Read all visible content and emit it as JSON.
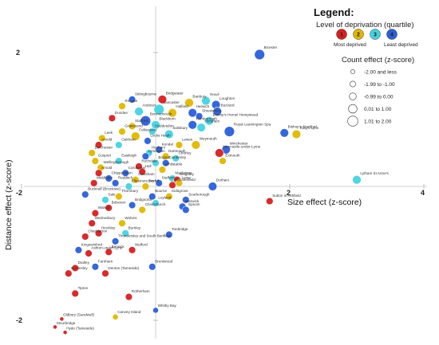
{
  "chart_data": {
    "type": "scatter",
    "xlabel": "Size effect (z-score)",
    "ylabel": "Distance effect (z-score)",
    "xlim": [
      -2.0,
      4.0
    ],
    "ylim": [
      -2.1,
      2.35
    ],
    "x_ticks": [
      "-2",
      "2",
      "4"
    ],
    "y_ticks": [
      "2",
      "-2"
    ],
    "legend": {
      "title": "Legend:",
      "deprivation_title": "Level of deprivation (quartile)",
      "deprivation_items": [
        {
          "number": "1",
          "color": "#d62020"
        },
        {
          "number": "2",
          "color": "#e0b800"
        },
        {
          "number": "3",
          "color": "#45d3e0"
        },
        {
          "number": "4",
          "color": "#2b5fd8"
        }
      ],
      "most_label": "Most deprived",
      "least_label": "Least deprived",
      "count_title": "Count effect (z-score)",
      "count_items": [
        "-2.00 and less",
        "-1.99 to -1.00",
        "-0.99 to 0.00",
        "0.01 to 1.00",
        "1.01 to 2.00"
      ]
    },
    "series": [
      {
        "label": "Reigate",
        "x": -0.5,
        "y": 1.2,
        "q": 2,
        "c": 3
      },
      {
        "label": "Bridgwater",
        "x": 0.1,
        "y": 1.3,
        "q": 1,
        "c": 4
      },
      {
        "label": "Sittingbourne",
        "x": -0.35,
        "y": 1.3,
        "q": 4,
        "c": 3
      },
      {
        "label": "Banbury",
        "x": 0.5,
        "y": 1.25,
        "q": 2,
        "c": 4
      },
      {
        "label": "Yeovil",
        "x": 0.75,
        "y": 1.28,
        "q": 3,
        "c": 4
      },
      {
        "label": "Loughton",
        "x": 0.9,
        "y": 1.22,
        "q": 4,
        "c": 4
      },
      {
        "label": "Buzzard",
        "x": 0.92,
        "y": 1.12,
        "q": 4,
        "c": 4
      },
      {
        "label": "Lancaster",
        "x": 0.05,
        "y": 1.15,
        "q": 3,
        "c": 5
      },
      {
        "label": "Halfield",
        "x": 0.25,
        "y": 1.1,
        "q": 2,
        "c": 4
      },
      {
        "label": "Harwich",
        "x": 0.55,
        "y": 1.1,
        "q": 4,
        "c": 4
      },
      {
        "label": "Andover",
        "x": -0.25,
        "y": 1.12,
        "q": 3,
        "c": 4
      },
      {
        "label": "Shrewsbury",
        "x": 0.65,
        "y": 1.05,
        "q": 4,
        "c": 3
      },
      {
        "label": "Bishop's Hemel Hempstead",
        "x": 0.8,
        "y": 0.98,
        "q": 3,
        "c": 4
      },
      {
        "label": "Dundee",
        "x": -0.65,
        "y": 1.02,
        "q": 1,
        "c": 3
      },
      {
        "label": "Bonrnemouth",
        "x": -0.15,
        "y": 0.98,
        "q": 4,
        "c": 5
      },
      {
        "label": "Stafford",
        "x": -0.35,
        "y": 0.9,
        "q": 2,
        "c": 3
      },
      {
        "label": "Blackburn",
        "x": 0.0,
        "y": 0.92,
        "q": 3,
        "c": 4
      },
      {
        "label": "Farnborough",
        "x": 0.55,
        "y": 0.92,
        "q": 4,
        "c": 4
      },
      {
        "label": "Gravesend",
        "x": -0.5,
        "y": 0.82,
        "q": 2,
        "c": 3
      },
      {
        "label": "Hoddesdon",
        "x": -0.05,
        "y": 0.82,
        "q": 3,
        "c": 3
      },
      {
        "label": "Horsham",
        "x": 0.68,
        "y": 0.88,
        "q": 3,
        "c": 4
      },
      {
        "label": "Royal Leamington Spa",
        "x": 1.1,
        "y": 0.82,
        "q": 4,
        "c": 5
      },
      {
        "label": "Folkestone",
        "x": -0.3,
        "y": 0.75,
        "q": 2,
        "c": 4
      },
      {
        "label": "Salisbury",
        "x": 0.2,
        "y": 0.78,
        "q": 3,
        "c": 4
      },
      {
        "label": "Locks Heath",
        "x": -0.12,
        "y": 0.68,
        "q": 4,
        "c": 3
      },
      {
        "label": "Weymouth",
        "x": 0.6,
        "y": 0.62,
        "q": 2,
        "c": 4
      },
      {
        "label": "Leek",
        "x": -0.8,
        "y": 0.72,
        "q": 2,
        "c": 3
      },
      {
        "label": "Lewes",
        "x": 0.35,
        "y": 0.62,
        "q": 2,
        "c": 3
      },
      {
        "label": "Oakham",
        "x": -0.55,
        "y": 0.62,
        "q": 3,
        "c": 3
      },
      {
        "label": "Arnold",
        "x": -0.85,
        "y": 0.62,
        "q": 1,
        "c": 3
      },
      {
        "label": "Winchester",
        "x": 1.05,
        "y": 0.55,
        "q": 4,
        "c": 4
      },
      {
        "label": "Newcastle-under-Lyme",
        "x": 0.95,
        "y": 0.5,
        "q": 1,
        "c": 4
      },
      {
        "label": "Dorchester",
        "x": -0.95,
        "y": 0.5,
        "q": 2,
        "c": 3
      },
      {
        "label": "Gosport",
        "x": -0.9,
        "y": 0.38,
        "q": 2,
        "c": 3
      },
      {
        "label": "Eastleigh",
        "x": -0.55,
        "y": 0.38,
        "q": 3,
        "c": 3
      },
      {
        "label": "Rochdale",
        "x": -0.25,
        "y": 0.3,
        "q": 1,
        "c": 3
      },
      {
        "label": "Exmouth",
        "x": 1.0,
        "y": 0.38,
        "q": 2,
        "c": 3
      },
      {
        "label": "Wellingborough",
        "x": -0.82,
        "y": 0.28,
        "q": 2,
        "c": 3
      },
      {
        "label": "Arnold",
        "x": -0.85,
        "y": 0.2,
        "q": 1,
        "c": 3
      },
      {
        "label": "Chippenham",
        "x": -0.7,
        "y": 0.12,
        "q": 4,
        "c": 3
      },
      {
        "label": "Middleton",
        "x": -0.92,
        "y": 0.05,
        "q": 1,
        "c": 3
      },
      {
        "label": "Maidstone",
        "x": 0.25,
        "y": 0.12,
        "q": 3,
        "c": 3
      },
      {
        "label": "Macclesfield",
        "x": 0.25,
        "y": 0.02,
        "q": 1,
        "c": 3
      },
      {
        "label": "Durham",
        "x": 0.85,
        "y": 0.0,
        "q": 4,
        "c": 4
      },
      {
        "label": "Keighley",
        "x": 0.32,
        "y": 0.1,
        "q": 1,
        "c": 3
      },
      {
        "label": "Stafford",
        "x": 0.05,
        "y": 0.05,
        "q": 4,
        "c": 3
      },
      {
        "label": "Lyme",
        "x": 0.35,
        "y": 0.05,
        "q": 2,
        "c": 3
      },
      {
        "label": "Bognor",
        "x": 0.0,
        "y": 0.35,
        "q": 3,
        "c": 3
      },
      {
        "label": "Chorley",
        "x": 0.3,
        "y": 0.42,
        "q": 3,
        "c": 3
      },
      {
        "label": "Hexham",
        "x": -0.1,
        "y": 0.5,
        "q": 3,
        "c": 3
      },
      {
        "label": "Kendal",
        "x": 0.05,
        "y": 0.55,
        "q": 4,
        "c": 3
      },
      {
        "label": "Dartmouth",
        "x": 0.15,
        "y": 0.45,
        "q": 2,
        "c": 3
      },
      {
        "label": "Lymington",
        "x": -0.15,
        "y": 0.45,
        "q": 4,
        "c": 3
      },
      {
        "label": "Hull",
        "x": -0.2,
        "y": 0.22,
        "q": 1,
        "c": 3
      },
      {
        "label": "Grantham",
        "x": -0.3,
        "y": 0.1,
        "q": 2,
        "c": 3
      },
      {
        "label": "Colchester",
        "x": -0.45,
        "y": 0.2,
        "q": 4,
        "c": 3
      },
      {
        "label": "Whitstable",
        "x": 0.1,
        "y": 0.25,
        "q": 2,
        "c": 3
      },
      {
        "label": "Camberley",
        "x": 0.15,
        "y": 0.35,
        "q": 4,
        "c": 3
      },
      {
        "label": "Redditch",
        "x": -0.6,
        "y": 0.05,
        "q": 4,
        "c": 3
      },
      {
        "label": "Ellesmere Port",
        "x": -0.4,
        "y": 0.0,
        "q": 3,
        "c": 3
      },
      {
        "label": "Bexhill",
        "x": -0.15,
        "y": 0.0,
        "q": 2,
        "c": 3
      },
      {
        "label": "Bourne",
        "x": -0.05,
        "y": -0.15,
        "q": 4,
        "c": 3
      },
      {
        "label": "Bucknall (Broxtowe)",
        "x": -1.05,
        "y": -0.12,
        "q": 4,
        "c": 3
      },
      {
        "label": "Sale",
        "x": -0.75,
        "y": -0.2,
        "q": 3,
        "c": 3
      },
      {
        "label": "Thornbury",
        "x": -0.55,
        "y": -0.15,
        "q": 2,
        "c": 3
      },
      {
        "label": "Bolsover",
        "x": -0.7,
        "y": -0.32,
        "q": 1,
        "c": 3
      },
      {
        "label": "Christchurch",
        "x": -0.2,
        "y": -0.35,
        "q": 2,
        "c": 3
      },
      {
        "label": "Walsall",
        "x": -0.9,
        "y": -0.4,
        "q": 1,
        "c": 3
      },
      {
        "label": "Bridgnorth",
        "x": -0.35,
        "y": -0.28,
        "q": 4,
        "c": 3
      },
      {
        "label": "Leyland",
        "x": 0.0,
        "y": -0.25,
        "q": 3,
        "c": 3
      },
      {
        "label": "Scarborough",
        "x": 0.45,
        "y": -0.2,
        "q": 4,
        "c": 3
      },
      {
        "label": "Kidsgrove",
        "x": 0.2,
        "y": -0.15,
        "q": 2,
        "c": 3
      },
      {
        "label": "Warwick",
        "x": 0.4,
        "y": -0.3,
        "q": 4,
        "c": 3
      },
      {
        "label": "Epsom",
        "x": 0.45,
        "y": -0.35,
        "q": 4,
        "c": 3
      },
      {
        "label": "Sutton in Ashfield",
        "x": 1.7,
        "y": -0.22,
        "q": 1,
        "c": 3
      },
      {
        "label": "Wednesbury",
        "x": -0.95,
        "y": -0.55,
        "q": 1,
        "c": 3
      },
      {
        "label": "Hinckley",
        "x": -0.85,
        "y": -0.7,
        "q": 1,
        "c": 3
      },
      {
        "label": "Chadderton",
        "x": -1.05,
        "y": -0.75,
        "q": 1,
        "c": 3
      },
      {
        "label": "Wolves",
        "x": -0.5,
        "y": -0.55,
        "q": 2,
        "c": 3
      },
      {
        "label": "Tonbridge",
        "x": 0.2,
        "y": -0.72,
        "q": 4,
        "c": 3
      },
      {
        "label": "Walford",
        "x": -0.35,
        "y": -0.95,
        "q": 1,
        "c": 3
      },
      {
        "label": "Ashton-under-Lyne",
        "x": -1.0,
        "y": -1.0,
        "q": 1,
        "c": 3
      },
      {
        "label": "Berwick",
        "x": -0.7,
        "y": -0.98,
        "q": 1,
        "c": 3
      },
      {
        "label": "Kingswinford",
        "x": -1.15,
        "y": -0.95,
        "q": 4,
        "c": 3
      },
      {
        "label": "Burnley",
        "x": -0.45,
        "y": -0.7,
        "q": 3,
        "c": 3
      },
      {
        "label": "Thundersley and South Benfleet",
        "x": -0.6,
        "y": -0.82,
        "q": 4,
        "c": 3
      },
      {
        "label": "Dudley",
        "x": -1.2,
        "y": -1.22,
        "q": 1,
        "c": 3
      },
      {
        "label": "Farnham",
        "x": -0.9,
        "y": -1.2,
        "q": 4,
        "c": 3
      },
      {
        "label": "Bordesley",
        "x": -1.3,
        "y": -1.3,
        "q": 1,
        "c": 3
      },
      {
        "label": "Denton (Tameside)",
        "x": -0.75,
        "y": -1.3,
        "q": 1,
        "c": 3
      },
      {
        "label": "Brentwood",
        "x": -0.05,
        "y": -1.2,
        "q": 4,
        "c": 3
      },
      {
        "label": "Whitby Bay",
        "x": 0.0,
        "y": -1.85,
        "q": 4,
        "c": 2
      },
      {
        "label": "Rotherham",
        "x": -0.4,
        "y": -1.65,
        "q": 1,
        "c": 3
      },
      {
        "label": "Tipton",
        "x": -1.2,
        "y": -1.6,
        "q": 1,
        "c": 3
      },
      {
        "label": "Canvey Island",
        "x": -0.6,
        "y": -1.95,
        "q": 2,
        "c": 2
      },
      {
        "label": "Oldbury (Sandwell)",
        "x": -1.4,
        "y": -1.98,
        "q": 1,
        "c": 1
      },
      {
        "label": "Stourbridge",
        "x": -1.5,
        "y": -2.1,
        "q": 1,
        "c": 1
      },
      {
        "label": "Hyde (Tameside)",
        "x": -1.35,
        "y": -2.18,
        "q": 1,
        "c": 1
      },
      {
        "label": "Bicester",
        "x": 1.55,
        "y": 1.97,
        "q": 4,
        "c": 5
      },
      {
        "label": "Bishop's Stortford",
        "x": 1.92,
        "y": 0.8,
        "q": 4,
        "c": 4
      },
      {
        "label": "King's Lynn",
        "x": 2.1,
        "y": 0.78,
        "q": 2,
        "c": 4
      },
      {
        "label": "Lytham St Anne's",
        "x": 3.0,
        "y": 0.1,
        "q": 3,
        "c": 4
      }
    ]
  }
}
